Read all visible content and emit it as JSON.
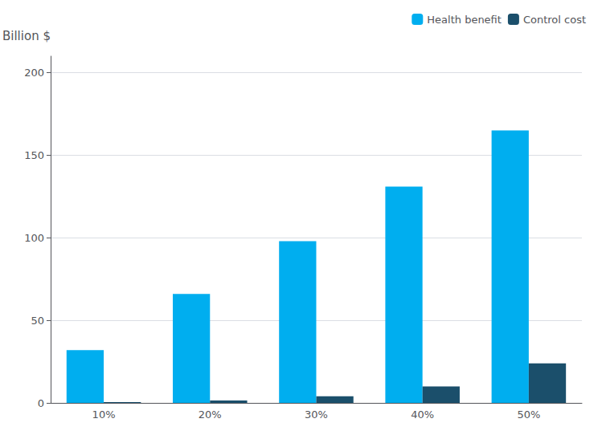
{
  "chart_data": {
    "type": "bar",
    "ylabel": "Billion $",
    "categories": [
      "10%",
      "20%",
      "30%",
      "40%",
      "50%"
    ],
    "series": [
      {
        "name": "Health benefit",
        "color": "#00AEEF",
        "values": [
          32,
          66,
          98,
          131,
          165
        ]
      },
      {
        "name": "Control cost",
        "color": "#1B4F6B",
        "values": [
          0.5,
          1.5,
          4,
          10,
          24
        ]
      }
    ],
    "ylim": [
      0,
      210
    ],
    "yticks": [
      0,
      50,
      100,
      150,
      200
    ],
    "grid": true,
    "legend": "upper right"
  }
}
